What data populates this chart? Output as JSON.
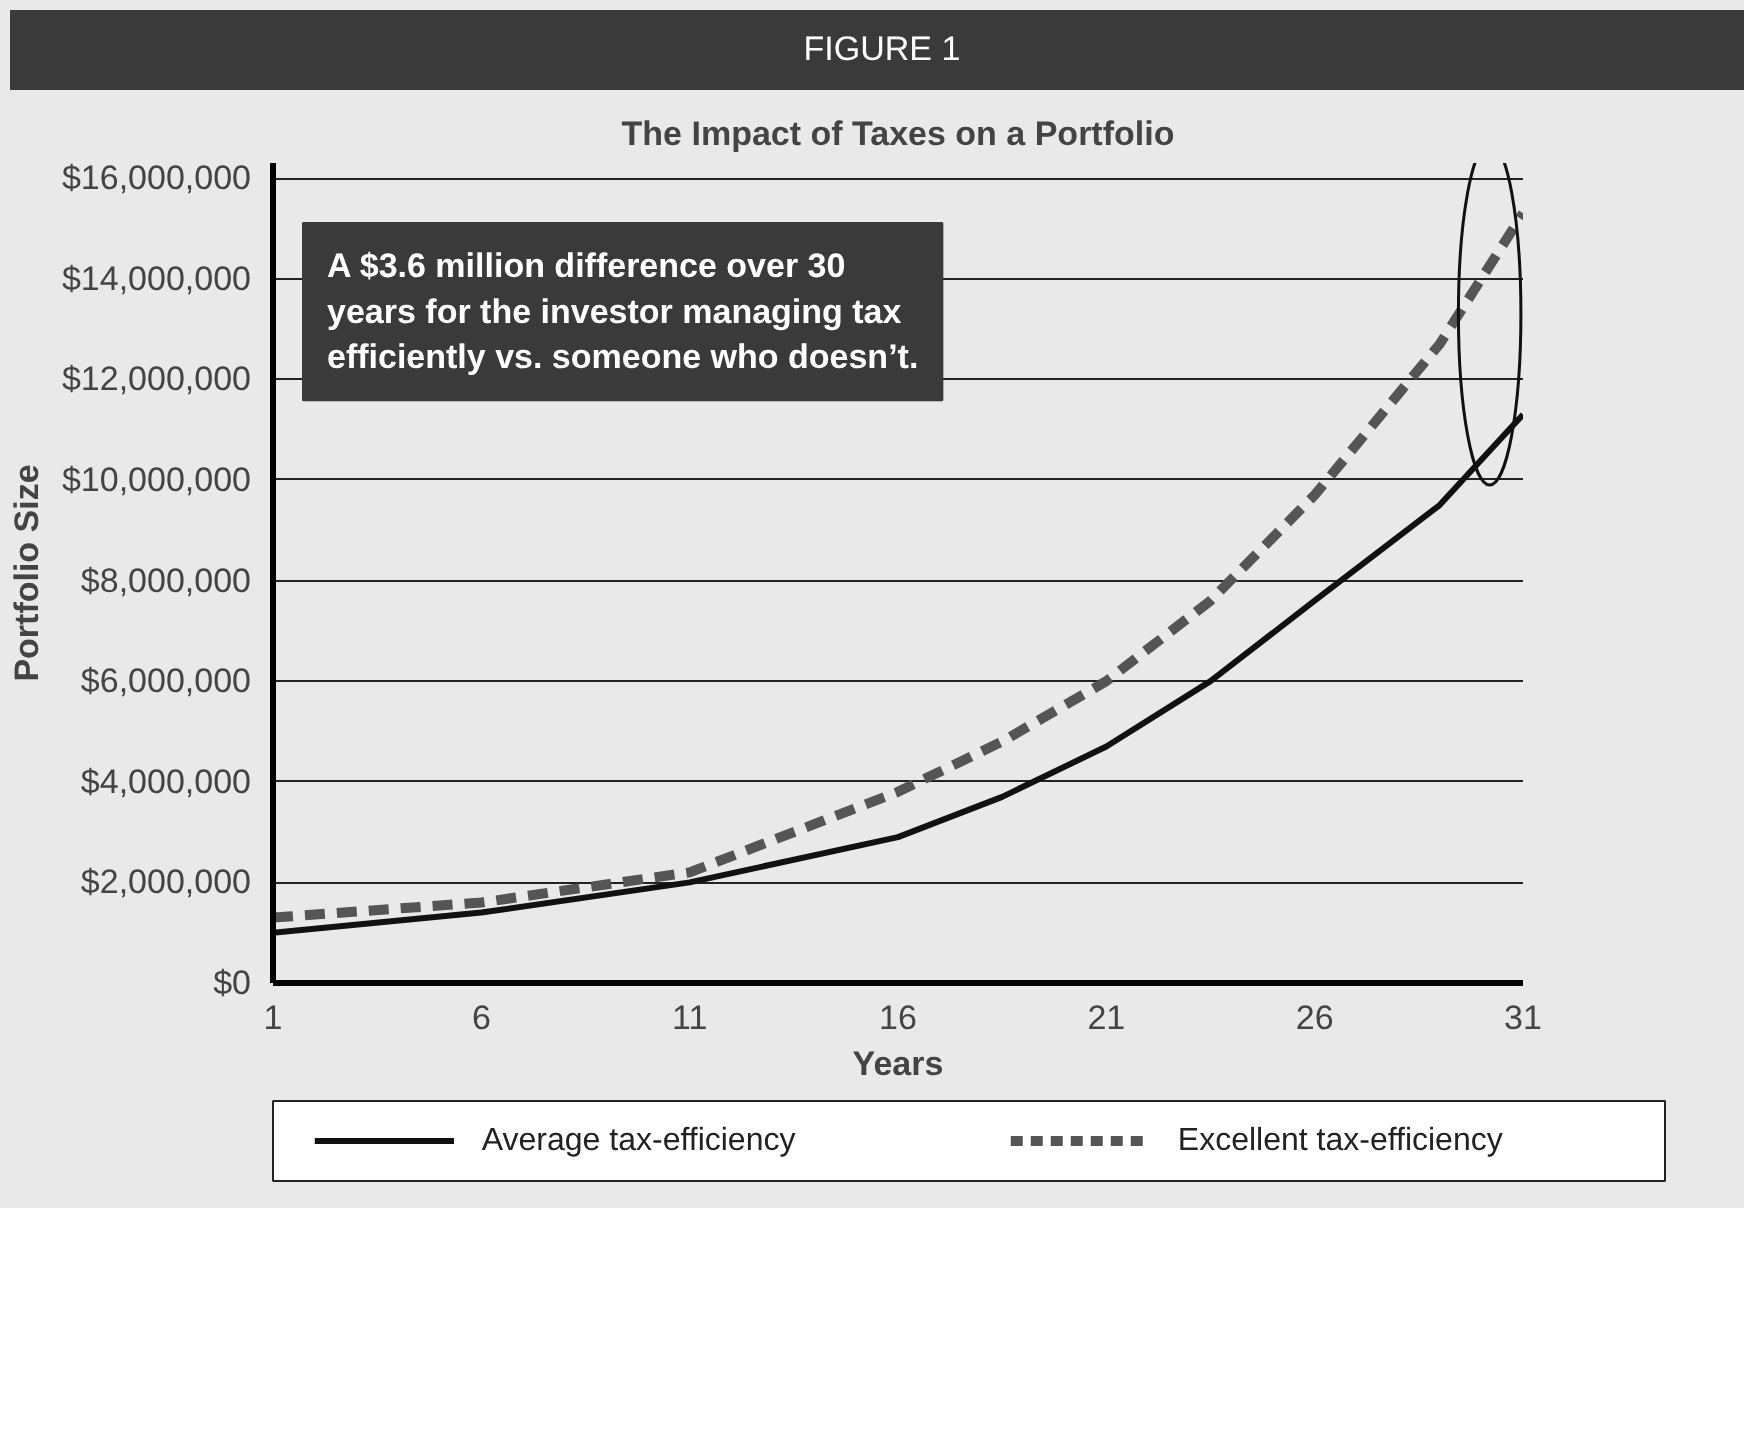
{
  "chart_data": {
    "type": "line",
    "title": "The Impact of Taxes on a Portfolio",
    "xlabel": "Years",
    "ylabel": "Portfolio Size",
    "annotations": [
      "FIGURE 1",
      "A $3.6 million difference over 30 years for the investor managing tax efficiently vs. someone who doesn’t."
    ],
    "x": [
      1,
      6,
      11,
      16,
      18.5,
      21,
      23.5,
      26,
      29,
      31
    ],
    "series": [
      {
        "name": "Average tax-efficiency",
        "color": "#111111",
        "line_style": "solid",
        "values": [
          1000000,
          1400000,
          2000000,
          2900000,
          3700000,
          4700000,
          6000000,
          7600000,
          9500000,
          11300000
        ]
      },
      {
        "name": "Excellent tax-efficiency",
        "color": "#555555",
        "line_style": "dashed",
        "values": [
          1300000,
          1600000,
          2200000,
          3800000,
          4800000,
          6000000,
          7600000,
          9700000,
          12700000,
          15300000
        ]
      }
    ],
    "xlim": [
      1,
      31
    ],
    "ylim": [
      0,
      16300000
    ],
    "xticks": [
      1,
      6,
      11,
      16,
      21,
      26,
      31
    ],
    "yticks": [
      {
        "value": 0,
        "label": "$0"
      },
      {
        "value": 2000000,
        "label": "$2,000,000"
      },
      {
        "value": 4000000,
        "label": "$4,000,000"
      },
      {
        "value": 6000000,
        "label": "$6,000,000"
      },
      {
        "value": 8000000,
        "label": "$8,000,000"
      },
      {
        "value": 10000000,
        "label": "$10,000,000"
      },
      {
        "value": 12000000,
        "label": "$12,000,000"
      },
      {
        "value": 14000000,
        "label": "$14,000,000"
      },
      {
        "value": 16000000,
        "label": "$16,000,000"
      }
    ],
    "grid": "y",
    "legend": "bottom"
  }
}
